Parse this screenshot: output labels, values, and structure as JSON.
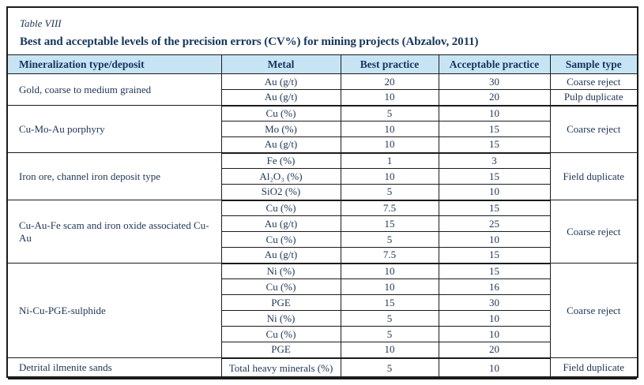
{
  "table_label": "Table VIII",
  "title": "Best and acceptable levels of the precision errors (CV%) for mining projects (Abzalov, 2011)",
  "columns": [
    "Mineralization type/deposit",
    "Metal",
    "Best practice",
    "Acceptable practice",
    "Sample type"
  ],
  "colors": {
    "header_bg": "#c7e4f5",
    "text_ink": "#1e3554",
    "header_ink": "#16355c",
    "border": "#1b1b1b"
  },
  "groups": [
    {
      "deposit": "Gold, coarse to medium grained",
      "rows": [
        {
          "metal": "Au (g/t)",
          "best": "20",
          "acceptable": "30",
          "sample": "Coarse reject"
        },
        {
          "metal": "Au (g/t)",
          "best": "10",
          "acceptable": "20",
          "sample": "Pulp duplicate"
        }
      ]
    },
    {
      "deposit": "Cu-Mo-Au porphyry",
      "sample": "Coarse reject",
      "rows": [
        {
          "metal": "Cu (%)",
          "best": "5",
          "acceptable": "10"
        },
        {
          "metal": "Mo (%)",
          "best": "10",
          "acceptable": "15"
        },
        {
          "metal": "Au (g/t)",
          "best": "10",
          "acceptable": "15"
        }
      ]
    },
    {
      "deposit": "Iron ore, channel iron deposit type",
      "sample": "Field duplicate",
      "rows": [
        {
          "metal": "Fe (%)",
          "best": "1",
          "acceptable": "3"
        },
        {
          "metal": "Al₂O₃ (%)",
          "best": "10",
          "acceptable": "15"
        },
        {
          "metal": "SiO2 (%)",
          "best": "5",
          "acceptable": "10"
        }
      ]
    },
    {
      "deposit": "Cu-Au-Fe scam and iron oxide associated Cu-Au",
      "sample": "Coarse reject",
      "rows": [
        {
          "metal": "Cu (%)",
          "best": "7.5",
          "acceptable": "15"
        },
        {
          "metal": "Au (g/t)",
          "best": "15",
          "acceptable": "25"
        },
        {
          "metal": "Cu (%)",
          "best": "5",
          "acceptable": "10"
        },
        {
          "metal": "Au (g/t)",
          "best": "7.5",
          "acceptable": "15"
        }
      ]
    },
    {
      "deposit": "Ni-Cu-PGE-sulphide",
      "sample": "Coarse reject",
      "rows": [
        {
          "metal": "Ni (%)",
          "best": "10",
          "acceptable": "15"
        },
        {
          "metal": "Cu (%)",
          "best": "10",
          "acceptable": "16"
        },
        {
          "metal": "PGE",
          "best": "15",
          "acceptable": "30"
        },
        {
          "metal": "Ni (%)",
          "best": "5",
          "acceptable": "10"
        },
        {
          "metal": "Cu (%)",
          "best": "5",
          "acceptable": "10"
        },
        {
          "metal": "PGE",
          "best": "10",
          "acceptable": "20"
        }
      ]
    },
    {
      "deposit": "Detrital ilmenite sands",
      "sample": "Field duplicate",
      "rows": [
        {
          "metal": "Total heavy minerals (%)",
          "best": "5",
          "acceptable": "10"
        }
      ]
    }
  ]
}
